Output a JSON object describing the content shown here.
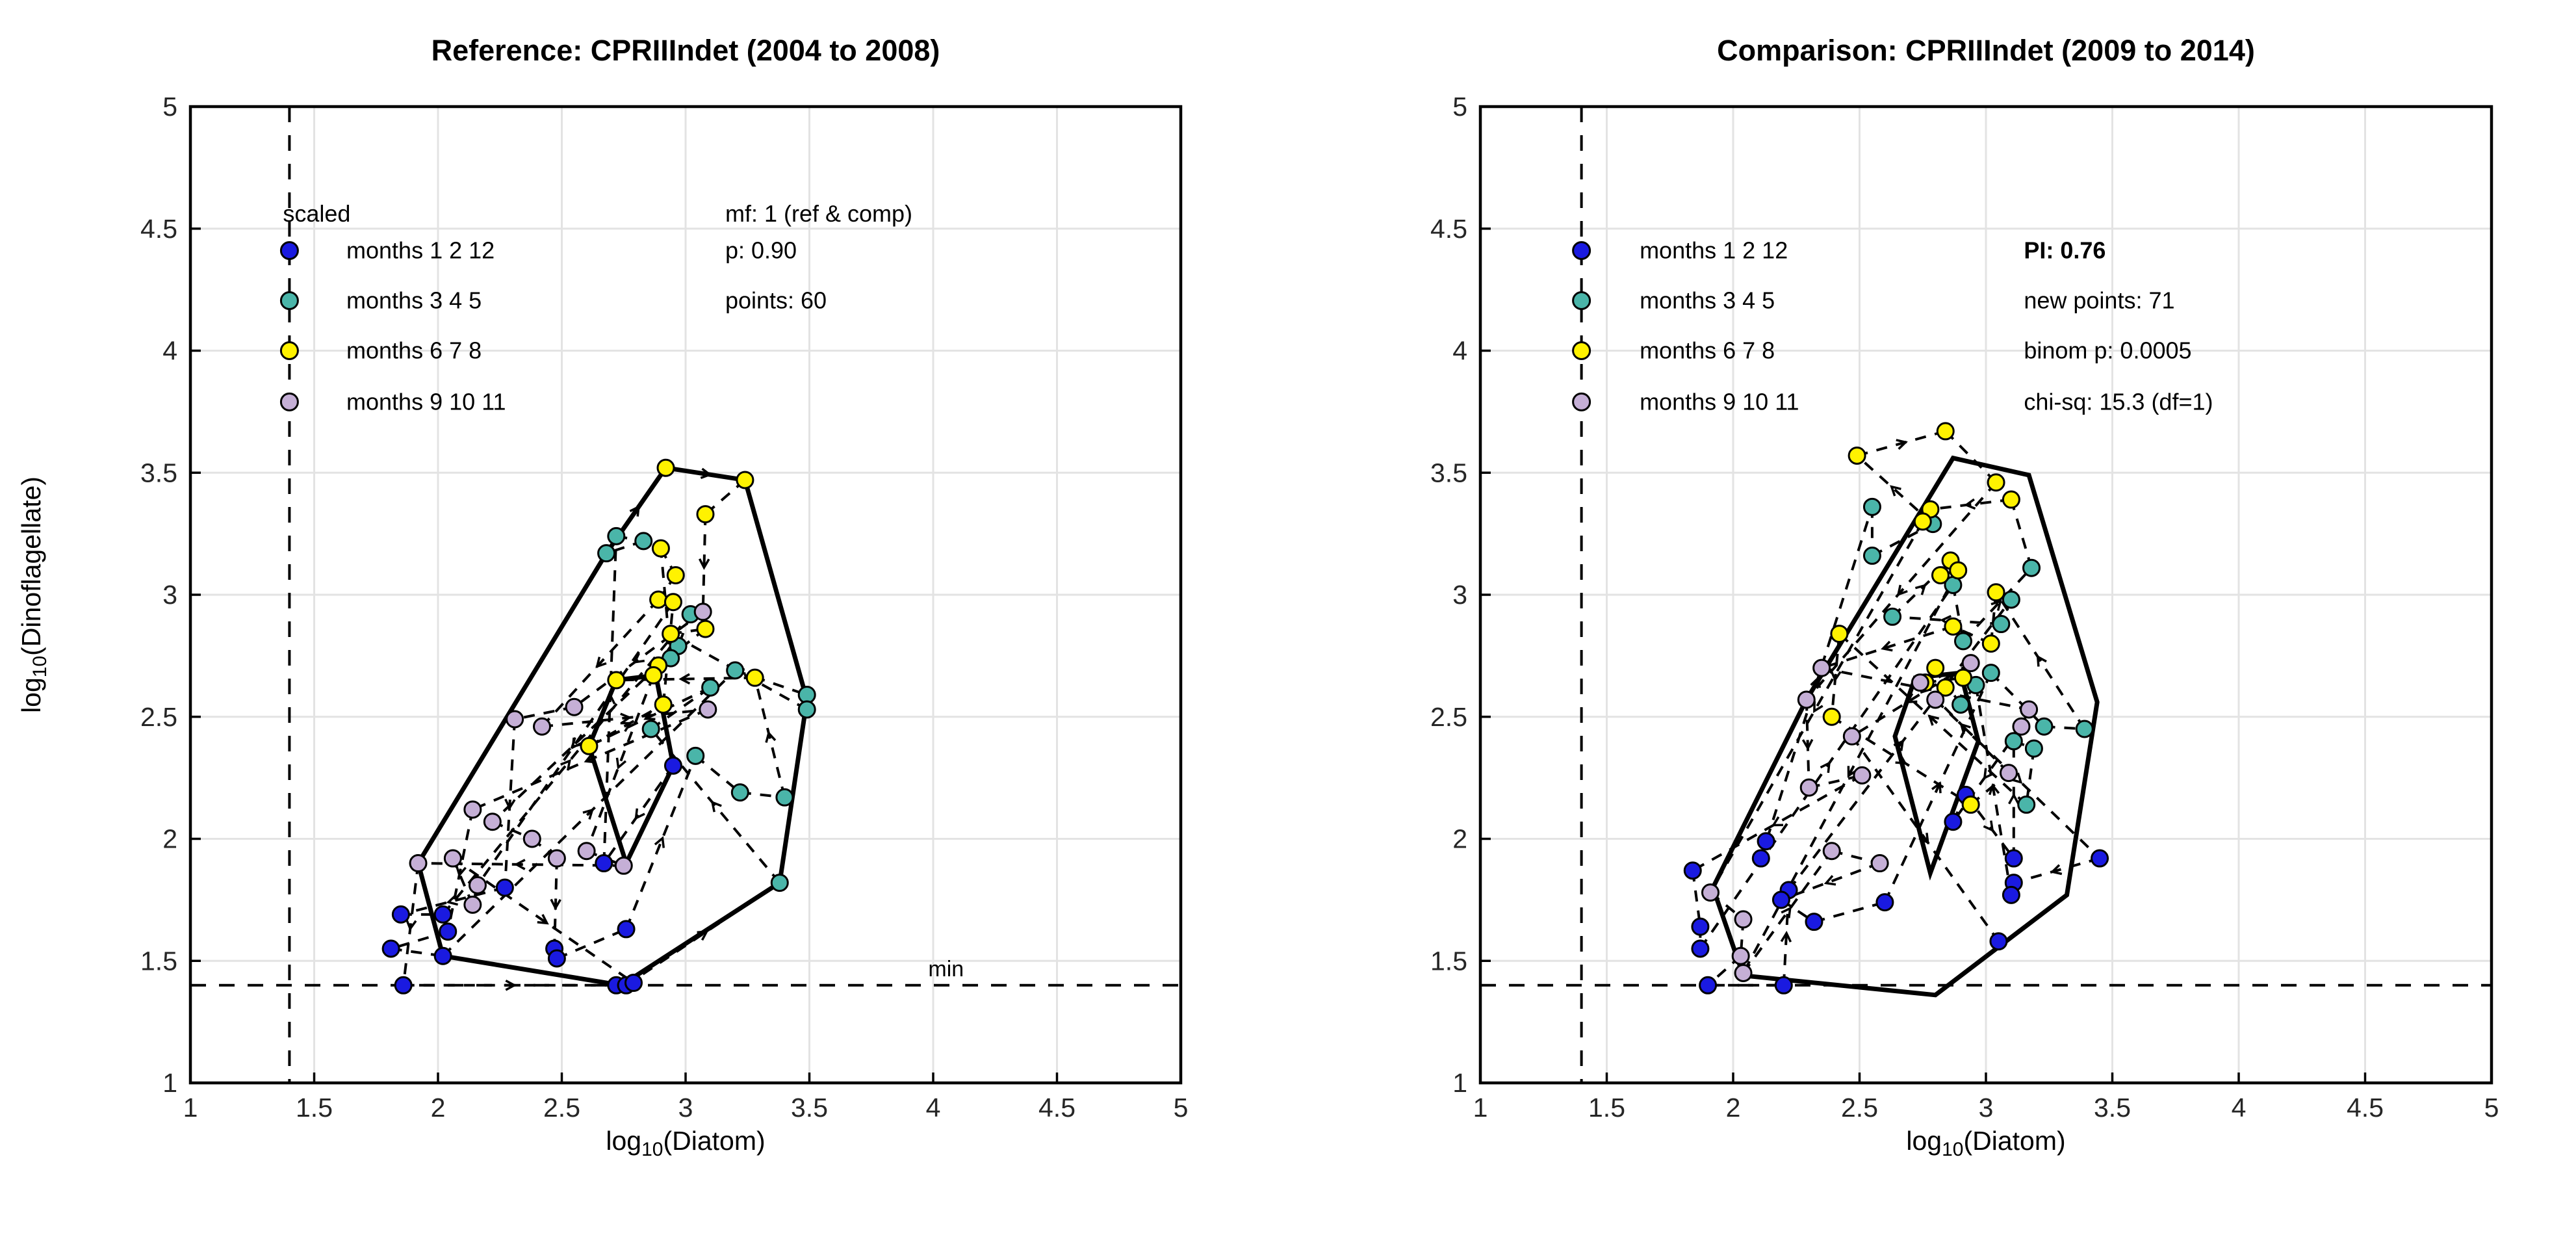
{
  "colors": {
    "blue": "#1a1ae0",
    "teal": "#4ab5a9",
    "yellow": "#fff200",
    "lavender": "#c5afd6",
    "marker_edge": "#000000",
    "grid": "#e3e3e3",
    "axis_box": "#000000",
    "tick_label": "#262626",
    "dashed_line": "#000000"
  },
  "axes": {
    "x_pre": "log",
    "x_sub": "10",
    "x_post": "(Diatom)",
    "y_pre": "log",
    "y_sub": "10",
    "y_post": "(Dinoflagellate)"
  },
  "chart_data": [
    {
      "panel": "reference",
      "type": "scatter",
      "title": "Reference: CPRIIIndet (2004 to 2008)",
      "xlabel": "log10(Diatom)",
      "ylabel": "log10(Dinoflagellate)",
      "xlim": [
        1,
        5
      ],
      "ylim": [
        1,
        5
      ],
      "xticks": [
        1,
        1.5,
        2,
        2.5,
        3,
        3.5,
        4,
        4.5,
        5
      ],
      "yticks": [
        1,
        1.5,
        2,
        2.5,
        3,
        3.5,
        4,
        4.5,
        5
      ],
      "grid": true,
      "min_threshold": {
        "x": 1.4,
        "y": 1.4,
        "label": "min"
      },
      "legend": {
        "header": "scaled",
        "position": "upper-left-inside",
        "items": [
          {
            "label": "months 1  2  12",
            "color_key": "blue"
          },
          {
            "label": "months 3  4  5",
            "color_key": "teal"
          },
          {
            "label": "months 6  7  8",
            "color_key": "yellow"
          },
          {
            "label": "months 9  10  11",
            "color_key": "lavender"
          }
        ]
      },
      "annotations": [
        {
          "text": "mf: 1 (ref & comp)",
          "bold": false
        },
        {
          "text": "p: 0.90",
          "bold": false
        },
        {
          "text": "points: 60",
          "bold": false
        }
      ],
      "outer_hull": [
        [
          2.92,
          3.52
        ],
        [
          3.24,
          3.47
        ],
        [
          3.49,
          2.57
        ],
        [
          3.38,
          1.82
        ],
        [
          2.74,
          1.4
        ],
        [
          2.02,
          1.52
        ],
        [
          1.92,
          1.9
        ],
        [
          2.68,
          3.17
        ]
      ],
      "inner_hull": [
        [
          2.61,
          2.38
        ],
        [
          2.72,
          2.65
        ],
        [
          2.88,
          2.67
        ],
        [
          2.95,
          2.3
        ],
        [
          2.76,
          1.9
        ]
      ],
      "series": [
        {
          "name": "months 1  2  12",
          "color_key": "blue",
          "points": [
            [
              2.95,
              2.3
            ],
            [
              2.67,
              1.9
            ],
            [
              2.27,
              1.8
            ],
            [
              1.85,
              1.69
            ],
            [
              2.02,
              1.69
            ],
            [
              2.04,
              1.62
            ],
            [
              1.81,
              1.55
            ],
            [
              2.02,
              1.52
            ],
            [
              2.47,
              1.55
            ],
            [
              2.48,
              1.51
            ],
            [
              2.76,
              1.63
            ],
            [
              1.86,
              1.4
            ],
            [
              2.72,
              1.4
            ],
            [
              2.76,
              1.4
            ],
            [
              2.79,
              1.41
            ]
          ]
        },
        {
          "name": "months 3  4  5",
          "color_key": "teal",
          "points": [
            [
              2.72,
              3.24
            ],
            [
              2.83,
              3.22
            ],
            [
              2.68,
              3.17
            ],
            [
              3.02,
              2.92
            ],
            [
              2.97,
              2.79
            ],
            [
              2.94,
              2.74
            ],
            [
              3.2,
              2.69
            ],
            [
              3.49,
              2.59
            ],
            [
              3.49,
              2.53
            ],
            [
              3.04,
              2.34
            ],
            [
              3.22,
              2.19
            ],
            [
              3.4,
              2.17
            ],
            [
              3.38,
              1.82
            ],
            [
              2.86,
              2.45
            ],
            [
              3.1,
              2.62
            ]
          ]
        },
        {
          "name": "months 6  7  8",
          "color_key": "yellow",
          "points": [
            [
              2.92,
              3.52
            ],
            [
              3.24,
              3.47
            ],
            [
              3.08,
              3.33
            ],
            [
              2.9,
              3.19
            ],
            [
              2.96,
              3.08
            ],
            [
              2.89,
              2.98
            ],
            [
              2.94,
              2.84
            ],
            [
              3.08,
              2.86
            ],
            [
              2.89,
              2.71
            ],
            [
              3.28,
              2.66
            ],
            [
              2.72,
              2.65
            ],
            [
              2.87,
              2.67
            ],
            [
              2.61,
              2.38
            ],
            [
              2.91,
              2.55
            ],
            [
              2.95,
              2.97
            ]
          ]
        },
        {
          "name": "months 9  10  11",
          "color_key": "lavender",
          "points": [
            [
              3.07,
              2.93
            ],
            [
              2.55,
              2.54
            ],
            [
              2.31,
              2.49
            ],
            [
              2.42,
              2.46
            ],
            [
              3.09,
              2.53
            ],
            [
              2.14,
              2.12
            ],
            [
              2.22,
              2.07
            ],
            [
              2.38,
              2.0
            ],
            [
              2.48,
              1.92
            ],
            [
              2.6,
              1.95
            ],
            [
              2.75,
              1.89
            ],
            [
              1.92,
              1.9
            ],
            [
              2.16,
              1.81
            ],
            [
              2.14,
              1.73
            ],
            [
              2.06,
              1.92
            ]
          ]
        }
      ]
    },
    {
      "panel": "comparison",
      "type": "scatter",
      "title": "Comparison: CPRIIIndet (2009 to 2014)",
      "xlabel": "log10(Diatom)",
      "ylabel": "",
      "xlim": [
        1,
        5
      ],
      "ylim": [
        1,
        5
      ],
      "xticks": [
        1,
        1.5,
        2,
        2.5,
        3,
        3.5,
        4,
        4.5,
        5
      ],
      "yticks": [
        1,
        1.5,
        2,
        2.5,
        3,
        3.5,
        4,
        4.5,
        5
      ],
      "grid": true,
      "min_threshold": {
        "x": 1.4,
        "y": 1.4,
        "label": ""
      },
      "legend": {
        "header": "",
        "position": "upper-left-inside",
        "items": [
          {
            "label": "months 1  2  12",
            "color_key": "blue"
          },
          {
            "label": "months 3  4  5",
            "color_key": "teal"
          },
          {
            "label": "months 6  7  8",
            "color_key": "yellow"
          },
          {
            "label": "months 9  10  11",
            "color_key": "lavender"
          }
        ]
      },
      "annotations": [
        {
          "text": "PI: 0.76",
          "bold": true
        },
        {
          "text": "new points: 71",
          "bold": false
        },
        {
          "text": "binom p: 0.0005",
          "bold": false
        },
        {
          "text": "chi-sq: 15.3 (df=1)",
          "bold": false
        }
      ],
      "outer_hull": [
        [
          2.87,
          3.56
        ],
        [
          3.17,
          3.49
        ],
        [
          3.44,
          2.56
        ],
        [
          3.32,
          1.77
        ],
        [
          2.8,
          1.36
        ],
        [
          2.04,
          1.44
        ],
        [
          1.92,
          1.8
        ],
        [
          2.29,
          2.57
        ]
      ],
      "inner_hull": [
        [
          2.64,
          2.42
        ],
        [
          2.72,
          2.66
        ],
        [
          2.9,
          2.68
        ],
        [
          2.97,
          2.4
        ],
        [
          2.78,
          1.86
        ]
      ],
      "series": [
        {
          "name": "months 1  2  12",
          "color_key": "blue",
          "points": [
            [
              2.13,
              1.99
            ],
            [
              2.11,
              1.92
            ],
            [
              1.84,
              1.87
            ],
            [
              1.87,
              1.64
            ],
            [
              1.87,
              1.55
            ],
            [
              1.9,
              1.4
            ],
            [
              2.2,
              1.4
            ],
            [
              2.22,
              1.79
            ],
            [
              2.19,
              1.75
            ],
            [
              2.32,
              1.66
            ],
            [
              2.6,
              1.74
            ],
            [
              2.87,
              2.07
            ],
            [
              2.92,
              2.18
            ],
            [
              3.11,
              1.92
            ],
            [
              3.45,
              1.92
            ],
            [
              3.11,
              1.82
            ],
            [
              3.1,
              1.77
            ],
            [
              3.05,
              1.58
            ]
          ]
        },
        {
          "name": "months 3  4  5",
          "color_key": "teal",
          "points": [
            [
              2.55,
              3.36
            ],
            [
              2.55,
              3.16
            ],
            [
              2.79,
              3.29
            ],
            [
              2.87,
              3.04
            ],
            [
              2.91,
              2.81
            ],
            [
              3.18,
              3.11
            ],
            [
              3.1,
              2.98
            ],
            [
              3.06,
              2.88
            ],
            [
              2.63,
              2.91
            ],
            [
              3.02,
              2.68
            ],
            [
              3.23,
              2.46
            ],
            [
              3.39,
              2.45
            ],
            [
              3.11,
              2.4
            ],
            [
              3.19,
              2.37
            ],
            [
              3.16,
              2.14
            ],
            [
              2.96,
              2.63
            ],
            [
              2.9,
              2.55
            ]
          ]
        },
        {
          "name": "months 6  7  8",
          "color_key": "yellow",
          "points": [
            [
              2.49,
              3.57
            ],
            [
              2.84,
              3.67
            ],
            [
              3.04,
              3.46
            ],
            [
              3.1,
              3.39
            ],
            [
              2.78,
              3.35
            ],
            [
              2.75,
              3.3
            ],
            [
              2.86,
              3.14
            ],
            [
              2.82,
              3.08
            ],
            [
              2.89,
              3.1
            ],
            [
              3.04,
              3.01
            ],
            [
              3.02,
              2.8
            ],
            [
              2.87,
              2.87
            ],
            [
              2.42,
              2.84
            ],
            [
              2.39,
              2.5
            ],
            [
              2.94,
              2.14
            ],
            [
              2.8,
              2.7
            ],
            [
              2.84,
              2.62
            ],
            [
              2.76,
              2.64
            ],
            [
              2.91,
              2.66
            ]
          ]
        },
        {
          "name": "months 9  10  11",
          "color_key": "lavender",
          "points": [
            [
              2.29,
              2.57
            ],
            [
              2.3,
              2.21
            ],
            [
              2.51,
              2.26
            ],
            [
              1.91,
              1.78
            ],
            [
              2.04,
              1.67
            ],
            [
              2.03,
              1.52
            ],
            [
              2.04,
              1.45
            ],
            [
              2.39,
              1.95
            ],
            [
              2.58,
              1.9
            ],
            [
              2.35,
              2.7
            ],
            [
              3.17,
              2.53
            ],
            [
              3.14,
              2.46
            ],
            [
              3.09,
              2.27
            ],
            [
              2.74,
              2.64
            ],
            [
              2.8,
              2.57
            ],
            [
              2.94,
              2.72
            ],
            [
              2.47,
              2.42
            ]
          ]
        }
      ]
    }
  ]
}
